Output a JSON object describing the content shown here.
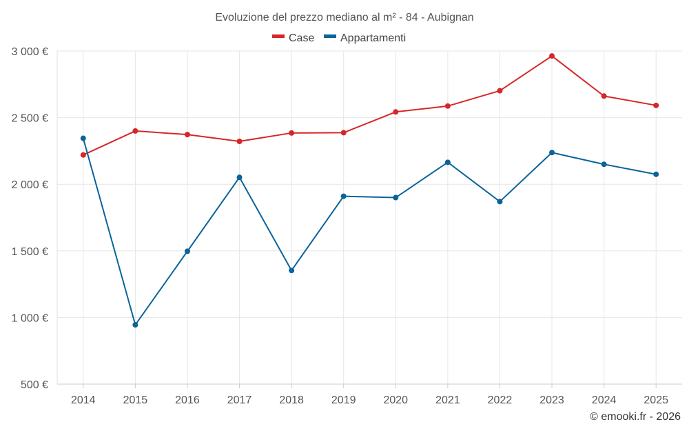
{
  "chart_data": {
    "type": "line",
    "title": "Evoluzione del prezzo mediano al m² - 84 - Aubignan",
    "xlabel": "",
    "ylabel": "",
    "categories": [
      "2014",
      "2015",
      "2016",
      "2017",
      "2018",
      "2019",
      "2020",
      "2021",
      "2022",
      "2023",
      "2024",
      "2025"
    ],
    "ylim": [
      500,
      3000
    ],
    "yticks": [
      500,
      1000,
      1500,
      2000,
      2500,
      3000
    ],
    "ytick_labels": [
      "500 €",
      "1 000 €",
      "1 500 €",
      "2 000 €",
      "2 500 €",
      "3 000 €"
    ],
    "grid": true,
    "legend_position": "top-center",
    "series": [
      {
        "name": "Case",
        "color": "#d62728",
        "values": [
          2220,
          2400,
          2373,
          2322,
          2385,
          2387,
          2543,
          2587,
          2702,
          2963,
          2662,
          2592
        ]
      },
      {
        "name": "Appartamenti",
        "color": "#0a6399",
        "values": [
          2345,
          945,
          1497,
          2052,
          1353,
          1910,
          1900,
          2165,
          1870,
          2238,
          2150,
          2075
        ]
      }
    ]
  },
  "credit": "© emooki.fr - 2026"
}
